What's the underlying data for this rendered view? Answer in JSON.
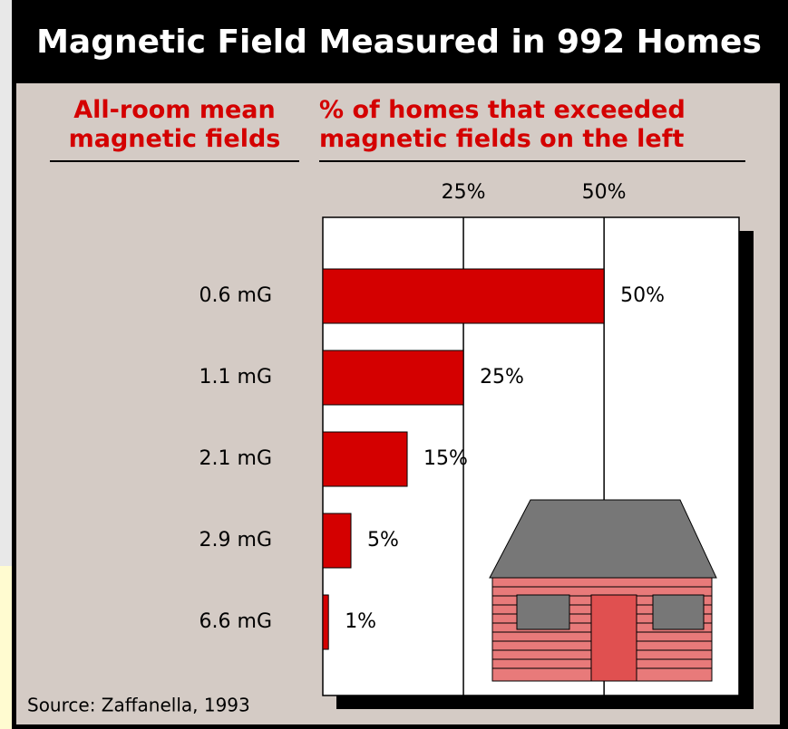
{
  "chart_data": {
    "type": "bar",
    "orientation": "horizontal",
    "title": "Magnetic Field Measured in 992 Homes",
    "y_label": "All-room mean magnetic fields",
    "x_label": "% of homes that exceeded magnetic fields on the left",
    "categories": [
      "0.6 mG",
      "1.1 mG",
      "2.1 mG",
      "2.9 mG",
      "6.6 mG"
    ],
    "values": [
      50,
      25,
      15,
      5,
      1
    ],
    "value_labels": [
      "50%",
      "25%",
      "15%",
      "5%",
      "1%"
    ],
    "color": "#d40000",
    "xlim": [
      0,
      74
    ],
    "xticks": [
      {
        "value": 25,
        "label": "25%"
      },
      {
        "value": 50,
        "label": "50%"
      }
    ],
    "grid": true,
    "source": "Source: Zaffanella, 1993"
  }
}
